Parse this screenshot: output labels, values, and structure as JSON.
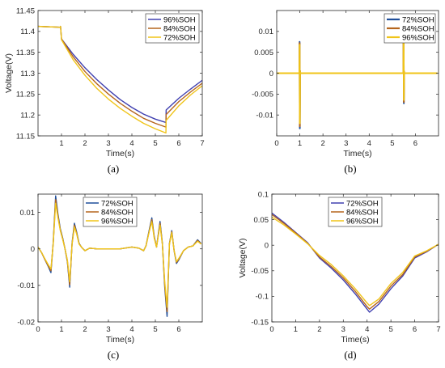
{
  "chart_data": [
    {
      "type": "line",
      "caption": "(a)",
      "xlabel": "Time(s)",
      "ylabel": "Voltage(V)",
      "xlim": [
        0,
        7
      ],
      "ylim": [
        11.15,
        11.45
      ],
      "xticks": [
        "1",
        "2",
        "3",
        "4",
        "5",
        "6",
        "7"
      ],
      "yticks": [
        "11.15",
        "11.2",
        "11.25",
        "11.3",
        "11.35",
        "11.4",
        "11.45"
      ],
      "legend": "top-right",
      "series": [
        {
          "name": "96%SOH",
          "color": "#4040b0",
          "x": [
            0,
            0.95,
            0.96,
            1,
            1.5,
            2,
            2.5,
            3,
            3.5,
            4,
            4.5,
            5,
            5.45,
            5.46,
            6,
            6.5,
            7
          ],
          "y": [
            11.412,
            11.41,
            11.412,
            11.382,
            11.345,
            11.313,
            11.285,
            11.26,
            11.237,
            11.218,
            11.202,
            11.19,
            11.182,
            11.212,
            11.24,
            11.262,
            11.283
          ]
        },
        {
          "name": "84%SOH",
          "color": "#b5651d",
          "x": [
            0,
            0.95,
            0.96,
            1,
            1.5,
            2,
            2.5,
            3,
            3.5,
            4,
            4.5,
            5,
            5.45,
            5.46,
            6,
            6.5,
            7
          ],
          "y": [
            11.412,
            11.41,
            11.412,
            11.382,
            11.339,
            11.304,
            11.275,
            11.25,
            11.228,
            11.209,
            11.192,
            11.18,
            11.171,
            11.201,
            11.232,
            11.255,
            11.276
          ]
        },
        {
          "name": "72%SOH",
          "color": "#f0c419",
          "x": [
            0,
            0.95,
            0.96,
            1,
            1.5,
            2,
            2.5,
            3,
            3.5,
            4,
            4.5,
            5,
            5.45,
            5.46,
            6,
            6.5,
            7
          ],
          "y": [
            11.412,
            11.41,
            11.412,
            11.38,
            11.332,
            11.295,
            11.264,
            11.238,
            11.216,
            11.197,
            11.18,
            11.167,
            11.157,
            11.187,
            11.222,
            11.248,
            11.27
          ]
        }
      ]
    },
    {
      "type": "line",
      "caption": "(b)",
      "xlabel": "Time(s)",
      "ylabel": "",
      "xlim": [
        0,
        7
      ],
      "ylim": [
        -0.015,
        0.015
      ],
      "xticks": [
        "0",
        "1",
        "2",
        "3",
        "4",
        "5",
        "6"
      ],
      "yticks": [
        "-0.01",
        "-0.005",
        "0",
        "0.005",
        "0.01"
      ],
      "legend": "top-right",
      "series": [
        {
          "name": "72%SOH",
          "color": "#1f4e9a",
          "x": [
            0,
            0.98,
            0.99,
            1.0,
            1.01,
            1.02,
            5.48,
            5.49,
            5.5,
            5.51,
            5.52,
            6.95
          ],
          "y": [
            0,
            0,
            0.0075,
            -0.0132,
            0.0005,
            0,
            0,
            0.013,
            -0.0072,
            0.0004,
            0,
            0
          ]
        },
        {
          "name": "84%SOH",
          "color": "#b5651d",
          "x": [
            0,
            0.98,
            0.99,
            1.0,
            1.01,
            1.02,
            5.48,
            5.49,
            5.5,
            5.51,
            5.52,
            6.95
          ],
          "y": [
            0,
            0,
            0.0072,
            -0.0127,
            0.0005,
            0,
            0,
            0.0125,
            -0.0069,
            0.0004,
            0,
            0
          ]
        },
        {
          "name": "96%SOH",
          "color": "#f0c419",
          "x": [
            0,
            0.98,
            0.99,
            1.0,
            1.01,
            1.02,
            5.48,
            5.49,
            5.5,
            5.51,
            5.52,
            6.95
          ],
          "y": [
            0,
            0,
            0.0068,
            -0.012,
            0.0004,
            0,
            0,
            0.0115,
            -0.0064,
            0.0003,
            0,
            0
          ]
        }
      ]
    },
    {
      "type": "line",
      "caption": "(c)",
      "xlabel": "Time(s)",
      "ylabel": "",
      "xlim": [
        0,
        7
      ],
      "ylim": [
        -0.02,
        0.015
      ],
      "xticks": [
        "0",
        "1",
        "2",
        "3",
        "4",
        "5",
        "6"
      ],
      "yticks": [
        "-0.02",
        "-0.01",
        "0",
        "0.01"
      ],
      "legend": "top-center",
      "series": [
        {
          "name": "72%SOH",
          "color": "#1f4e9a",
          "x": [
            0,
            0.15,
            0.3,
            0.45,
            0.55,
            0.65,
            0.75,
            0.85,
            0.95,
            1.05,
            1.15,
            1.25,
            1.35,
            1.45,
            1.55,
            1.65,
            1.75,
            1.85,
            2.0,
            2.2,
            2.5,
            3.0,
            3.5,
            4.0,
            4.3,
            4.5,
            4.6,
            4.75,
            4.85,
            4.95,
            5.05,
            5.2,
            5.3,
            5.4,
            5.5,
            5.6,
            5.7,
            5.8,
            5.9,
            6.0,
            6.2,
            6.4,
            6.6,
            6.8,
            6.95
          ],
          "y": [
            0.0005,
            -0.001,
            -0.003,
            -0.005,
            -0.0065,
            0.002,
            0.0145,
            0.0095,
            0.0055,
            0.003,
            0.0,
            -0.0035,
            -0.0105,
            0.0015,
            0.007,
            0.0045,
            0.0015,
            0.0005,
            -0.0005,
            0.0002,
            0.0,
            0.0,
            0.0,
            0.0005,
            0.0002,
            -0.0005,
            0.0008,
            0.0055,
            0.0085,
            0.0035,
            0.0005,
            0.0075,
            0.0015,
            -0.0105,
            -0.0185,
            0.0015,
            0.005,
            -0.0005,
            -0.004,
            -0.003,
            -0.0005,
            0.0005,
            0.0008,
            0.0025,
            0.0015
          ]
        },
        {
          "name": "84%SOH",
          "color": "#b5651d",
          "x": [
            0,
            0.15,
            0.3,
            0.45,
            0.55,
            0.65,
            0.75,
            0.85,
            0.95,
            1.05,
            1.15,
            1.25,
            1.35,
            1.45,
            1.55,
            1.65,
            1.75,
            1.85,
            2.0,
            2.2,
            2.5,
            3.0,
            3.5,
            4.0,
            4.3,
            4.5,
            4.6,
            4.75,
            4.85,
            4.95,
            5.05,
            5.2,
            5.3,
            5.4,
            5.5,
            5.6,
            5.7,
            5.8,
            5.9,
            6.0,
            6.2,
            6.4,
            6.6,
            6.8,
            6.95
          ],
          "y": [
            0.0005,
            -0.001,
            -0.003,
            -0.0048,
            -0.006,
            0.0018,
            0.0135,
            0.009,
            0.0052,
            0.0028,
            0.0,
            -0.0033,
            -0.0098,
            0.0013,
            0.0065,
            0.0042,
            0.0014,
            0.0005,
            -0.0005,
            0.0002,
            0.0,
            0.0,
            0.0,
            0.0005,
            0.0002,
            -0.0005,
            0.0008,
            0.0052,
            0.008,
            0.0033,
            0.0005,
            0.007,
            0.0013,
            -0.0098,
            -0.0172,
            0.0014,
            0.0047,
            -0.0005,
            -0.0037,
            -0.0028,
            -0.0005,
            0.0005,
            0.0008,
            0.0023,
            0.0014
          ]
        },
        {
          "name": "96%SOH",
          "color": "#f0c419",
          "x": [
            0,
            0.15,
            0.3,
            0.45,
            0.55,
            0.65,
            0.75,
            0.85,
            0.95,
            1.05,
            1.15,
            1.25,
            1.35,
            1.45,
            1.55,
            1.65,
            1.75,
            1.85,
            2.0,
            2.2,
            2.5,
            3.0,
            3.5,
            4.0,
            4.3,
            4.5,
            4.6,
            4.75,
            4.85,
            4.95,
            5.05,
            5.2,
            5.3,
            5.4,
            5.5,
            5.6,
            5.7,
            5.8,
            5.9,
            6.0,
            6.2,
            6.4,
            6.6,
            6.8,
            6.95
          ],
          "y": [
            0.0005,
            -0.001,
            -0.0028,
            -0.0045,
            -0.0055,
            0.0016,
            0.0125,
            0.0085,
            0.005,
            0.0026,
            0.0,
            -0.003,
            -0.009,
            0.0012,
            0.006,
            0.004,
            0.0013,
            0.0005,
            -0.0005,
            0.0002,
            0.0,
            0.0,
            0.0,
            0.0005,
            0.0002,
            -0.0005,
            0.0008,
            0.005,
            0.0075,
            0.003,
            0.0005,
            0.0065,
            0.0012,
            -0.009,
            -0.016,
            0.0013,
            0.0045,
            -0.0005,
            -0.0035,
            -0.0026,
            -0.0005,
            0.0005,
            0.0008,
            0.0021,
            0.0013
          ]
        }
      ]
    },
    {
      "type": "line",
      "caption": "(d)",
      "xlabel": "Time(s)",
      "ylabel": "Voltage(V)",
      "xlim": [
        0,
        7
      ],
      "ylim": [
        -0.15,
        0.1
      ],
      "xticks": [
        "0",
        "1",
        "2",
        "3",
        "4",
        "5",
        "6",
        "7"
      ],
      "yticks": [
        "-0.15",
        "-0.1",
        "-0.05",
        "0",
        "0.05",
        "0.1"
      ],
      "legend": "top-center",
      "series": [
        {
          "name": "72%SOH",
          "color": "#4040b0",
          "x": [
            0,
            0.5,
            1.0,
            1.5,
            2.0,
            2.5,
            3.0,
            3.5,
            4.0,
            4.1,
            4.5,
            5.0,
            5.5,
            6.0,
            6.5,
            7.0
          ],
          "y": [
            0.063,
            0.045,
            0.025,
            0.005,
            -0.025,
            -0.045,
            -0.068,
            -0.095,
            -0.125,
            -0.131,
            -0.115,
            -0.085,
            -0.06,
            -0.025,
            -0.013,
            0.002
          ]
        },
        {
          "name": "84%SOH",
          "color": "#b5651d",
          "x": [
            0,
            0.5,
            1.0,
            1.5,
            2.0,
            2.5,
            3.0,
            3.5,
            4.0,
            4.1,
            4.5,
            5.0,
            5.5,
            6.0,
            6.5,
            7.0
          ],
          "y": [
            0.06,
            0.043,
            0.024,
            0.004,
            -0.023,
            -0.042,
            -0.064,
            -0.09,
            -0.12,
            -0.125,
            -0.11,
            -0.08,
            -0.057,
            -0.023,
            -0.012,
            0.002
          ]
        },
        {
          "name": "96%SOH",
          "color": "#f0c419",
          "x": [
            0,
            0.5,
            1.0,
            1.5,
            2.0,
            2.5,
            3.0,
            3.5,
            4.0,
            4.1,
            4.5,
            5.0,
            5.5,
            6.0,
            6.5,
            7.0
          ],
          "y": [
            0.055,
            0.04,
            0.022,
            0.003,
            -0.02,
            -0.038,
            -0.06,
            -0.085,
            -0.113,
            -0.118,
            -0.105,
            -0.075,
            -0.053,
            -0.021,
            -0.011,
            0.002
          ]
        }
      ]
    }
  ]
}
